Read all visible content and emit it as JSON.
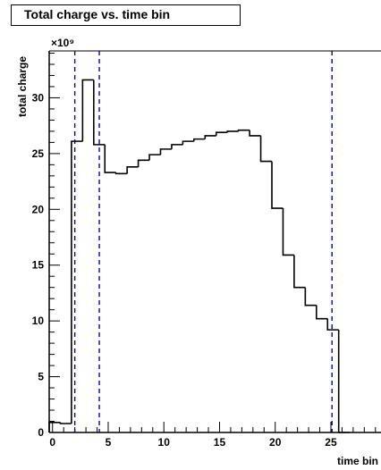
{
  "chart_data": {
    "type": "histogram",
    "title": "Total charge vs. time bin",
    "xlabel": "time bin",
    "ylabel": "total charge",
    "y_multiplier": "×10⁹",
    "xlim": [
      -0.3,
      29.5
    ],
    "ylim": [
      0,
      34.2
    ],
    "x_ticks": [
      0,
      5,
      10,
      15,
      20,
      25
    ],
    "y_ticks": [
      0,
      5,
      10,
      15,
      20,
      25,
      30
    ],
    "bin_width": 1,
    "bin_edges_start": -0.3,
    "values": [
      0.9,
      0.8,
      26.1,
      31.6,
      25.8,
      23.3,
      23.2,
      23.8,
      24.4,
      24.9,
      25.4,
      25.8,
      26.1,
      26.3,
      26.6,
      26.9,
      27.0,
      27.1,
      26.6,
      24.3,
      20.1,
      15.9,
      13.0,
      11.4,
      10.2,
      9.2,
      0
    ],
    "vertical_dashed_lines": [
      2.0,
      4.2,
      25.1
    ],
    "line_color": "#000000",
    "marker_line_color": "#0000cc"
  }
}
